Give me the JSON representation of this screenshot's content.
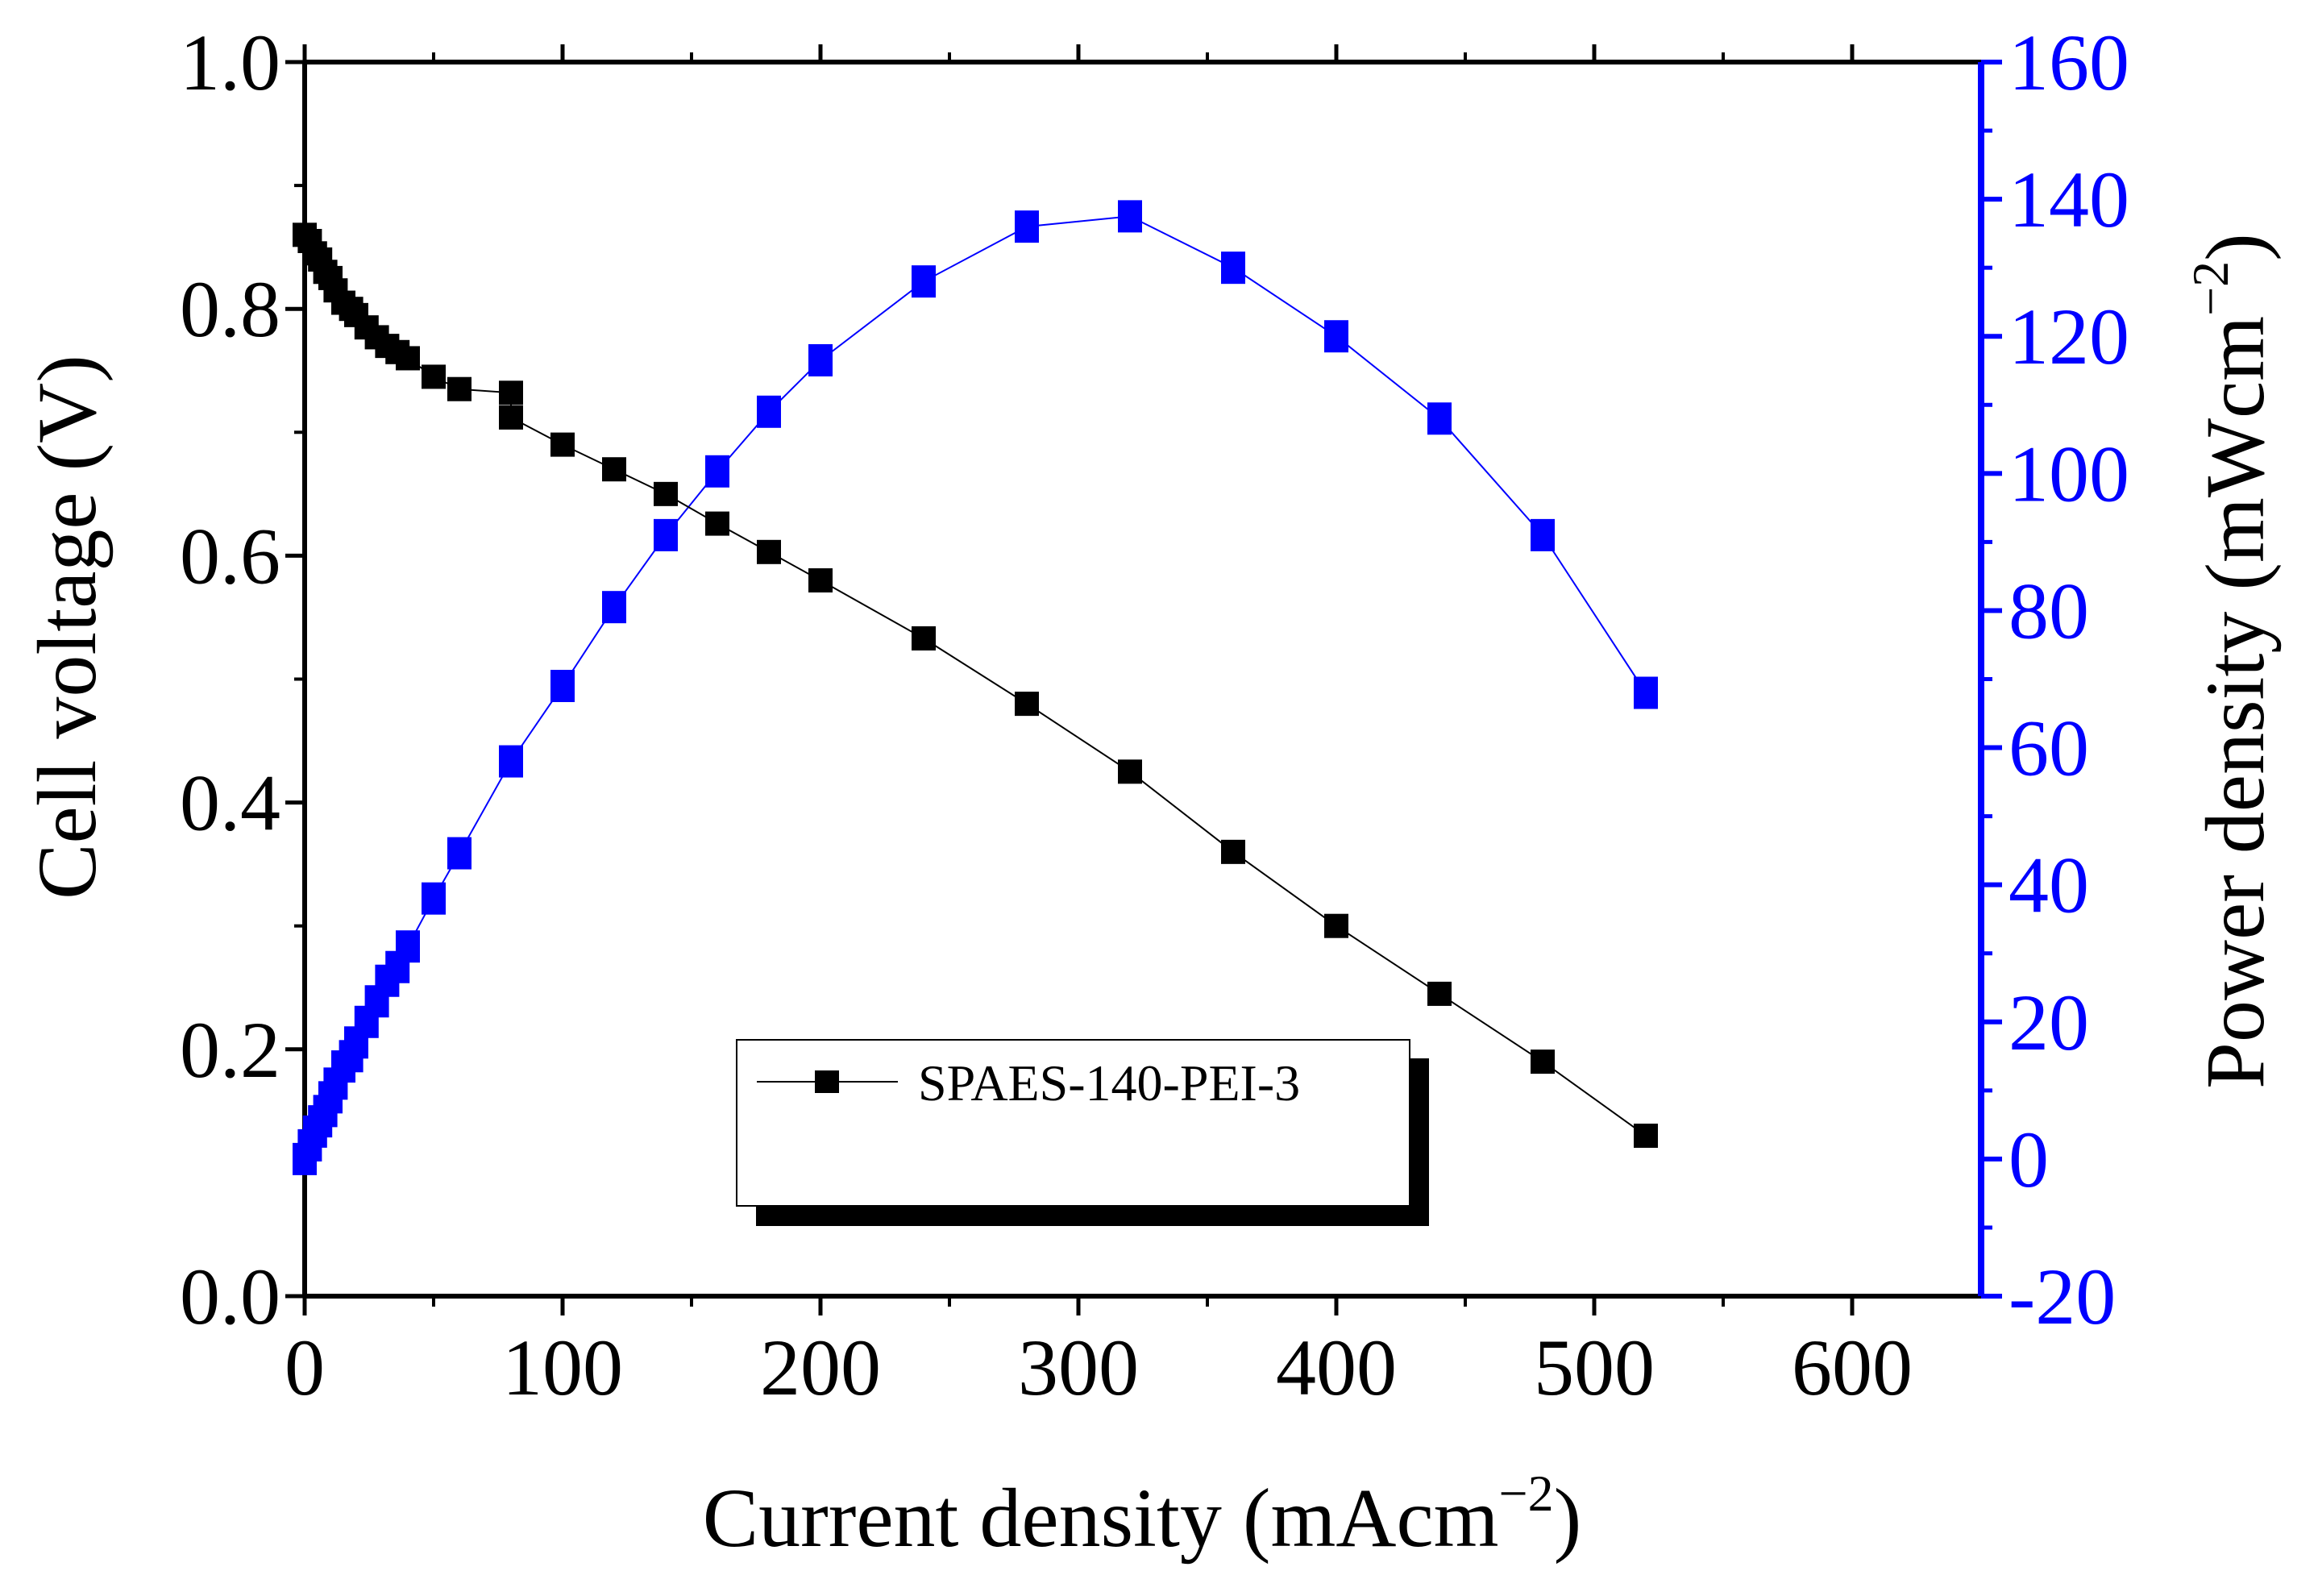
{
  "chart_data": {
    "type": "line",
    "title": "",
    "xlabel": "Current density (mAcm",
    "xlabel_sup": "−2",
    "xlabel_end": ")",
    "ylabel": "Cell voltage (V)",
    "y2label": "Power density (mWcm",
    "y2label_sup": "−2",
    "y2label_end": ")",
    "xlim": [
      0,
      650
    ],
    "ylim": [
      0.0,
      1.0
    ],
    "y2lim": [
      -20,
      160
    ],
    "xticks": [
      0,
      100,
      200,
      300,
      400,
      500,
      600
    ],
    "yticks": [
      0.0,
      0.2,
      0.4,
      0.6,
      0.8,
      1.0
    ],
    "y2ticks": [
      -20,
      0,
      20,
      40,
      60,
      80,
      100,
      120,
      140,
      160
    ],
    "xtick_labels": [
      "0",
      "100",
      "200",
      "300",
      "400",
      "500",
      "600"
    ],
    "ytick_labels": [
      "0.0",
      "0.2",
      "0.4",
      "0.6",
      "0.8",
      "1.0"
    ],
    "y2tick_labels": [
      "-20",
      "0",
      "20",
      "40",
      "60",
      "80",
      "100",
      "120",
      "140",
      "160"
    ],
    "grid": false,
    "legend_position": "bottom-center",
    "legend_label": "SPAES-140-PEI-3",
    "colors": {
      "voltage": "#000000",
      "power": "#0000ff",
      "axes": "#000000"
    },
    "series": [
      {
        "name": "SPAES-140-PEI-3",
        "axis": "left",
        "x": [
          0,
          2,
          4,
          6,
          8,
          10,
          12,
          15,
          18,
          20,
          24,
          28,
          32,
          36,
          40,
          50,
          60,
          80,
          80,
          100,
          120,
          140,
          160,
          180,
          200,
          240,
          280,
          320,
          360,
          400,
          440,
          480,
          520
        ],
        "values": [
          0.86,
          0.855,
          0.845,
          0.84,
          0.83,
          0.825,
          0.815,
          0.805,
          0.8,
          0.795,
          0.785,
          0.777,
          0.77,
          0.765,
          0.76,
          0.745,
          0.735,
          0.732,
          0.712,
          0.69,
          0.67,
          0.65,
          0.626,
          0.603,
          0.58,
          0.533,
          0.48,
          0.425,
          0.36,
          0.3,
          0.245,
          0.19,
          0.13
        ]
      },
      {
        "name": "Power density",
        "axis": "right",
        "x": [
          0,
          2,
          4,
          6,
          8,
          10,
          12,
          15,
          18,
          20,
          24,
          28,
          32,
          36,
          40,
          50,
          60,
          80,
          100,
          120,
          140,
          160,
          180,
          200,
          240,
          280,
          320,
          360,
          400,
          440,
          480,
          520
        ],
        "values": [
          0,
          2,
          4,
          5.5,
          7,
          9,
          11,
          13.5,
          15,
          17,
          20,
          23,
          26,
          28,
          31,
          38,
          44.6,
          58,
          69,
          80.5,
          91,
          100.3,
          109,
          116.5,
          128,
          136,
          137.5,
          130,
          120,
          108,
          91,
          68
        ]
      }
    ]
  }
}
